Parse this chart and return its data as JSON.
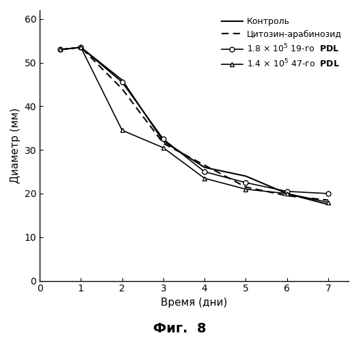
{
  "x": [
    0.5,
    1,
    2,
    3,
    4,
    5,
    6,
    7
  ],
  "kontrol": [
    53,
    53.5,
    46,
    32,
    26,
    24,
    20,
    17.5
  ],
  "cytosin": [
    53,
    53.5,
    44,
    31.5,
    26.5,
    21.5,
    19.5,
    18.5
  ],
  "pdl19": [
    53,
    53.5,
    45.5,
    32.5,
    25,
    22.5,
    20.5,
    20
  ],
  "pdl47": [
    53,
    53.5,
    34.5,
    30.5,
    23.5,
    21,
    20,
    18
  ],
  "xlabel": "Время (дни)",
  "ylabel": "Диаметр (мм)",
  "title_fig": "Фиг.  8",
  "legend_kontrol": "Контроль",
  "legend_cytosin": "Цитозин-арабинозид",
  "ylim": [
    0,
    62
  ],
  "xlim": [
    0,
    7.5
  ],
  "yticks": [
    0,
    10,
    20,
    30,
    40,
    50,
    60
  ],
  "xticks": [
    0,
    1,
    2,
    3,
    4,
    5,
    6,
    7
  ],
  "bg_color": "#ffffff"
}
